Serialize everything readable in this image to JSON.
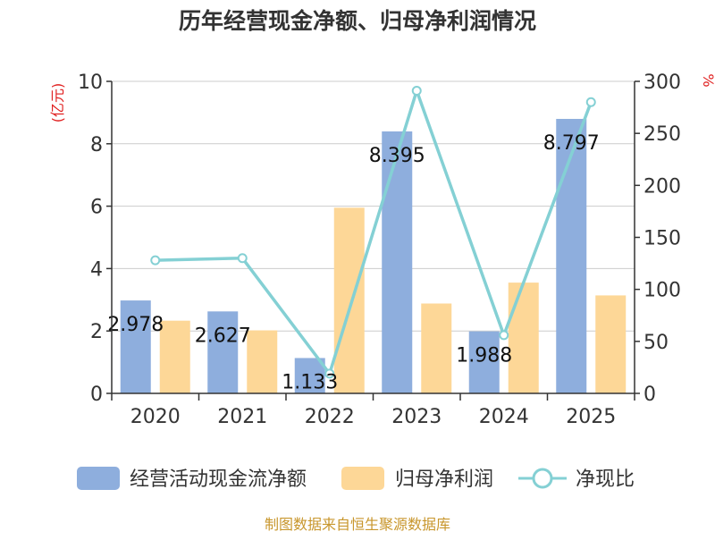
{
  "chart_data": {
    "type": "bar",
    "title": "历年经营现金净额、归母净利润情况",
    "categories": [
      "2020",
      "2021",
      "2022",
      "2023",
      "2024",
      "2025"
    ],
    "y_left": {
      "unit": "(亿元)",
      "ylim": [
        0,
        10
      ],
      "ticks": [
        0,
        2,
        4,
        6,
        8,
        10
      ]
    },
    "y_right": {
      "unit": "%",
      "ylim": [
        0,
        300
      ],
      "ticks": [
        0,
        50,
        100,
        150,
        200,
        250,
        300
      ]
    },
    "grid": true,
    "legend_position": "bottom",
    "series": [
      {
        "name": "经营活动现金流净额",
        "type": "bar",
        "axis": "left",
        "color": "#8eaedd",
        "values": [
          2.978,
          2.627,
          1.133,
          8.395,
          1.988,
          8.797
        ],
        "labels": [
          "2.978",
          "2.627",
          "1.133",
          "8.395",
          "1.988",
          "8.797"
        ]
      },
      {
        "name": "归母净利润",
        "type": "bar",
        "axis": "left",
        "color": "#fdd797",
        "values": [
          2.33,
          2.02,
          5.95,
          2.88,
          3.55,
          3.14
        ]
      },
      {
        "name": "净现比",
        "type": "line",
        "axis": "right",
        "color": "#84d0d4",
        "values": [
          128,
          130,
          19,
          291,
          56,
          280
        ]
      }
    ]
  },
  "footer": {
    "source": "制图数据来自恒生聚源数据库"
  }
}
